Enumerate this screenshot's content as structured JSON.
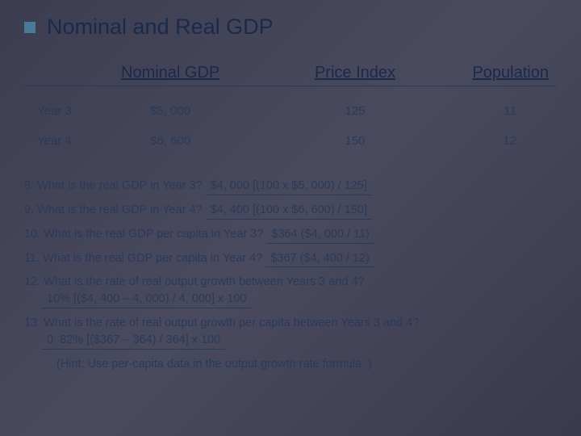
{
  "title": "Nominal and Real GDP",
  "table": {
    "headers": {
      "nominal": "Nominal GDP",
      "price": "Price Index",
      "population": "Population"
    },
    "rows": [
      {
        "year": "Year 3",
        "nominal": "$5, 000",
        "price": "125",
        "population": "11"
      },
      {
        "year": "Year 4",
        "nominal": "$6, 600",
        "price": "150",
        "population": "12"
      }
    ]
  },
  "questions": {
    "q8": {
      "prompt": "8.  What is the real GDP in Year 3? ",
      "answer": "  $4, 000 [(100 x $5, 000) / 125]  "
    },
    "q9": {
      "prompt": "9.  What is the real GDP in Year 4? ",
      "answer": "  $4, 400 [(100 x $6, 600) / 150]  "
    },
    "q10": {
      "prompt": "10. What is the real GDP per capita in Year 3? ",
      "answer": " $364   ($4, 000 / 11)  "
    },
    "q11": {
      "prompt": "11. What is the real GDP per capita in Year 4? ",
      "answer": " $367   ($4, 400 / 12)  "
    },
    "q12": {
      "prompt": "12. What is the rate of real output growth between Years 3 and 4?",
      "answer": "10%     [($4, 400 – 4, 000) / 4, 000] x  100    "
    },
    "q13": {
      "prompt": "13. What is the rate of real output growth per capita between Years 3 and 4?",
      "answer": "0. 82%   [($367 – 364) / 364] x  100            "
    },
    "hint": "(Hint: Use per-capita data in the output growth rate formula. )"
  },
  "colors": {
    "bullet": "#4a7a9a",
    "text": "#2a3a5a",
    "title": "#1a2a4a"
  }
}
